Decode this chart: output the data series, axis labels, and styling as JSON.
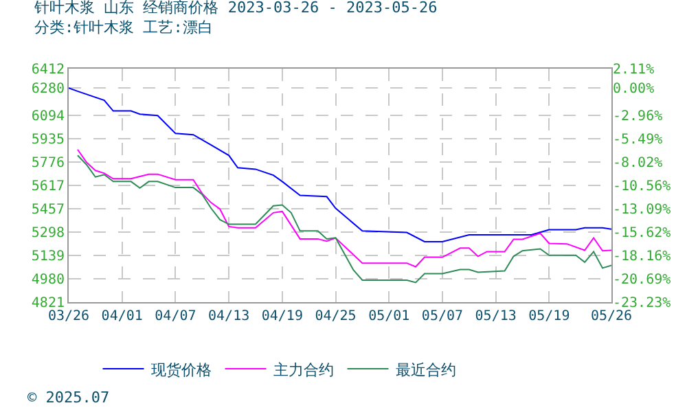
{
  "chart_data": {
    "type": "line",
    "title": "针叶木浆 山东 经销商价格 2023-03-26 - 2023-05-26",
    "subtitle": "分类:针叶木浆 工艺:漂白",
    "annotations": [
      "© 2025.07"
    ],
    "series": [
      {
        "name": "现货价格",
        "color": "#0000ff",
        "x": [
          "2023-03-26",
          "2023-03-27",
          "2023-03-30",
          "2023-03-31",
          "2023-04-02",
          "2023-04-03",
          "2023-04-05",
          "2023-04-07",
          "2023-04-09",
          "2023-04-11",
          "2023-04-13",
          "2023-04-14",
          "2023-04-16",
          "2023-04-18",
          "2023-04-19",
          "2023-04-21",
          "2023-04-24",
          "2023-04-25",
          "2023-04-28",
          "2023-05-03",
          "2023-05-05",
          "2023-05-07",
          "2023-05-10",
          "2023-05-17",
          "2023-05-19",
          "2023-05-22",
          "2023-05-23",
          "2023-05-25",
          "2023-05-26"
        ],
        "values": [
          6280,
          6258,
          6196,
          6124,
          6124,
          6102,
          6093,
          5971,
          5962,
          5892,
          5821,
          5737,
          5727,
          5686,
          5643,
          5549,
          5540,
          5461,
          5306,
          5296,
          5233,
          5233,
          5280,
          5280,
          5315,
          5315,
          5327,
          5327,
          5318
        ]
      },
      {
        "name": "主力合约",
        "color": "#ff00ff",
        "x": [
          "2023-03-27",
          "2023-03-28",
          "2023-03-29",
          "2023-03-30",
          "2023-03-31",
          "2023-04-02",
          "2023-04-04",
          "2023-04-05",
          "2023-04-07",
          "2023-04-09",
          "2023-04-10",
          "2023-04-11",
          "2023-04-12",
          "2023-04-13",
          "2023-04-14",
          "2023-04-16",
          "2023-04-18",
          "2023-04-19",
          "2023-04-21",
          "2023-04-23",
          "2023-04-24",
          "2023-04-25",
          "2023-04-28",
          "2023-05-03",
          "2023-05-04",
          "2023-05-05",
          "2023-05-07",
          "2023-05-09",
          "2023-05-10",
          "2023-05-11",
          "2023-05-12",
          "2023-05-14",
          "2023-05-15",
          "2023-05-16",
          "2023-05-18",
          "2023-05-19",
          "2023-05-21",
          "2023-05-23",
          "2023-05-24",
          "2023-05-25",
          "2023-05-26"
        ],
        "values": [
          5861,
          5774,
          5718,
          5699,
          5662,
          5662,
          5693,
          5693,
          5655,
          5655,
          5561,
          5499,
          5455,
          5336,
          5327,
          5327,
          5430,
          5439,
          5252,
          5252,
          5237,
          5258,
          5087,
          5087,
          5062,
          5127,
          5127,
          5189,
          5189,
          5133,
          5165,
          5165,
          5249,
          5249,
          5290,
          5221,
          5218,
          5174,
          5259,
          5171,
          5174
        ]
      },
      {
        "name": "最近合约",
        "color": "#2e8b57",
        "x": [
          "2023-03-27",
          "2023-03-28",
          "2023-03-29",
          "2023-03-30",
          "2023-03-31",
          "2023-04-02",
          "2023-04-03",
          "2023-04-04",
          "2023-04-05",
          "2023-04-07",
          "2023-04-09",
          "2023-04-10",
          "2023-04-11",
          "2023-04-12",
          "2023-04-13",
          "2023-04-16",
          "2023-04-18",
          "2023-04-19",
          "2023-04-20",
          "2023-04-21",
          "2023-04-23",
          "2023-04-24",
          "2023-04-25",
          "2023-04-27",
          "2023-04-28",
          "2023-05-03",
          "2023-05-04",
          "2023-05-05",
          "2023-05-07",
          "2023-05-09",
          "2023-05-10",
          "2023-05-11",
          "2023-05-14",
          "2023-05-15",
          "2023-05-16",
          "2023-05-18",
          "2023-05-19",
          "2023-05-22",
          "2023-05-23",
          "2023-05-24",
          "2023-05-25",
          "2023-05-26"
        ],
        "values": [
          5821,
          5758,
          5674,
          5690,
          5643,
          5643,
          5599,
          5643,
          5643,
          5602,
          5602,
          5555,
          5461,
          5383,
          5352,
          5352,
          5477,
          5483,
          5430,
          5306,
          5306,
          5252,
          5259,
          5040,
          4971,
          4971,
          4955,
          5015,
          5015,
          5043,
          5043,
          5025,
          5034,
          5133,
          5171,
          5184,
          5140,
          5140,
          5093,
          5165,
          5053,
          5071
        ]
      }
    ],
    "xlim": [
      "2023-03-26",
      "2023-05-26"
    ],
    "xticks": [
      {
        "value": "2023-03-26",
        "label": "03/26"
      },
      {
        "value": "2023-04-01",
        "label": "04/01"
      },
      {
        "value": "2023-04-07",
        "label": "04/07"
      },
      {
        "value": "2023-04-13",
        "label": "04/13"
      },
      {
        "value": "2023-04-19",
        "label": "04/19"
      },
      {
        "value": "2023-04-25",
        "label": "04/25"
      },
      {
        "value": "2023-05-01",
        "label": "05/01"
      },
      {
        "value": "2023-05-07",
        "label": "05/07"
      },
      {
        "value": "2023-05-13",
        "label": "05/13"
      },
      {
        "value": "2023-05-19",
        "label": "05/19"
      },
      {
        "value": "2023-05-26",
        "label": "05/26"
      }
    ],
    "ylim": [
      4821,
      6412
    ],
    "yticks": [
      4821,
      4980,
      5139,
      5298,
      5457,
      5617,
      5776,
      5935,
      6094,
      6280,
      6412
    ],
    "y2lim": [
      -23.23,
      2.11
    ],
    "y2ticks": [
      {
        "value": -23.23,
        "label": "-23.23%"
      },
      {
        "value": -20.69,
        "label": "-20.69%"
      },
      {
        "value": -18.16,
        "label": "-18.16%"
      },
      {
        "value": -15.62,
        "label": "-15.62%"
      },
      {
        "value": -13.09,
        "label": "-13.09%"
      },
      {
        "value": -10.56,
        "label": "-10.56%"
      },
      {
        "value": -8.02,
        "label": "-8.02%"
      },
      {
        "value": -5.49,
        "label": "-5.49%"
      },
      {
        "value": -2.96,
        "label": "-2.96%"
      },
      {
        "value": 0,
        "label": "0.00%"
      },
      {
        "value": 2.11,
        "label": "2.11%"
      }
    ],
    "grid": true,
    "legend": "bottom",
    "line_style": "solid",
    "marker": "none"
  }
}
